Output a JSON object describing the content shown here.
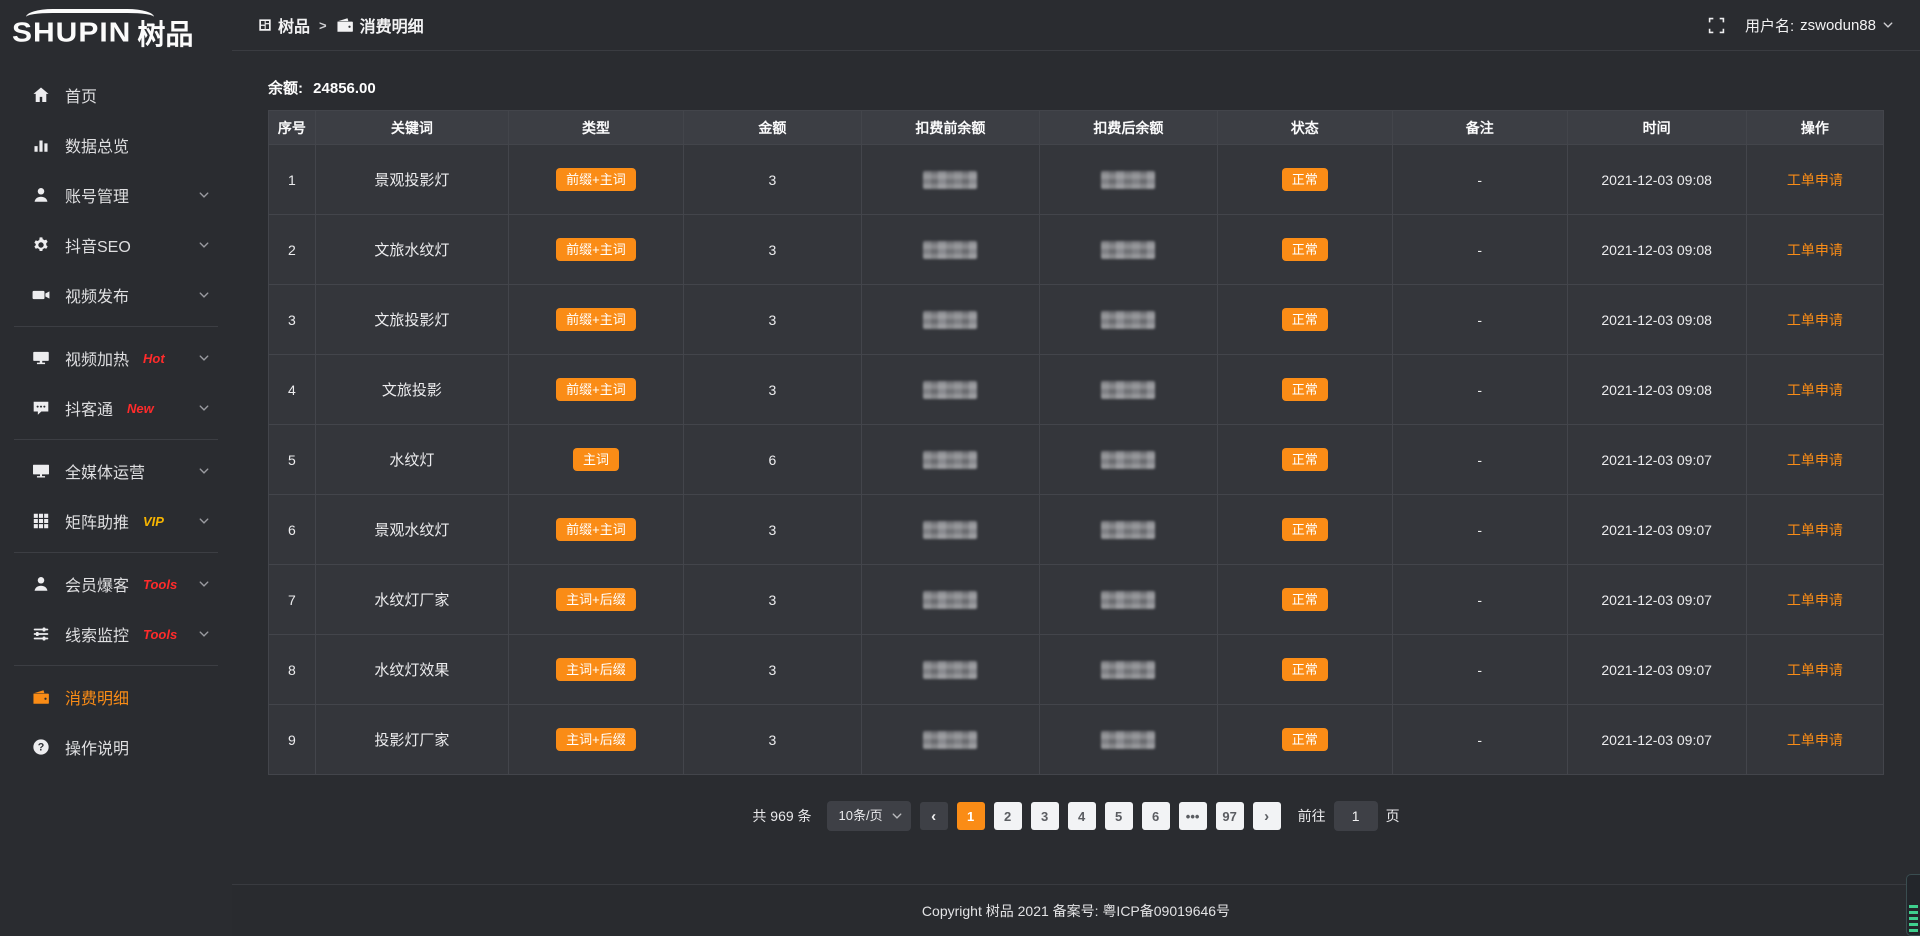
{
  "app": {
    "logo_en": "SHUPIN",
    "logo_cn": "树品"
  },
  "topbar": {
    "breadcrumb": [
      {
        "icon": "dashboard",
        "label": "树品"
      },
      {
        "icon": "wallet",
        "label": "消费明细"
      }
    ],
    "separator": ">",
    "username_label": "用户名:",
    "username": "zswodun88"
  },
  "sidebar": {
    "items": [
      {
        "label": "首页",
        "icon": "home"
      },
      {
        "label": "数据总览",
        "icon": "bar-chart"
      },
      {
        "label": "账号管理",
        "icon": "user",
        "chevron": true
      },
      {
        "label": "抖音SEO",
        "icon": "gear",
        "chevron": true
      },
      {
        "label": "视频发布",
        "icon": "video",
        "chevron": true
      },
      {
        "divider": true
      },
      {
        "label": "视频加热",
        "icon": "heat",
        "tag": "Hot",
        "tag_color": "#ff2b2b",
        "chevron": true
      },
      {
        "label": "抖客通",
        "icon": "chat",
        "tag": "New",
        "tag_color": "#ff2b2b",
        "chevron": true
      },
      {
        "divider": true
      },
      {
        "label": "全媒体运营",
        "icon": "monitor",
        "chevron": true
      },
      {
        "label": "矩阵助推",
        "icon": "grid",
        "tag": "VIP",
        "tag_color": "#f7b500",
        "chevron": true
      },
      {
        "divider": true
      },
      {
        "label": "会员爆客",
        "icon": "member",
        "tag": "Tools",
        "tag_color": "#ff2b2b",
        "chevron": true
      },
      {
        "label": "线索监控",
        "icon": "sliders",
        "tag": "Tools",
        "tag_color": "#ff2b2b",
        "chevron": true
      },
      {
        "divider": true
      },
      {
        "label": "消费明细",
        "icon": "wallet",
        "active": true
      },
      {
        "label": "操作说明",
        "icon": "question"
      }
    ]
  },
  "main": {
    "balance_label": "余额:",
    "balance_value": "24856.00",
    "table": {
      "headers": [
        "序号",
        "关键词",
        "类型",
        "金额",
        "扣费前余额",
        "扣费后余额",
        "状态",
        "备注",
        "时间",
        "操作"
      ],
      "rows": [
        {
          "no": "1",
          "keyword": "景观投影灯",
          "type": "前缀+主词",
          "amount": "3",
          "status": "正常",
          "note": "-",
          "time": "2021-12-03 09:08",
          "action": "工单申请"
        },
        {
          "no": "2",
          "keyword": "文旅水纹灯",
          "type": "前缀+主词",
          "amount": "3",
          "status": "正常",
          "note": "-",
          "time": "2021-12-03 09:08",
          "action": "工单申请"
        },
        {
          "no": "3",
          "keyword": "文旅投影灯",
          "type": "前缀+主词",
          "amount": "3",
          "status": "正常",
          "note": "-",
          "time": "2021-12-03 09:08",
          "action": "工单申请"
        },
        {
          "no": "4",
          "keyword": "文旅投影",
          "type": "前缀+主词",
          "amount": "3",
          "status": "正常",
          "note": "-",
          "time": "2021-12-03 09:08",
          "action": "工单申请"
        },
        {
          "no": "5",
          "keyword": "水纹灯",
          "type": "主词",
          "amount": "6",
          "status": "正常",
          "note": "-",
          "time": "2021-12-03 09:07",
          "action": "工单申请"
        },
        {
          "no": "6",
          "keyword": "景观水纹灯",
          "type": "前缀+主词",
          "amount": "3",
          "status": "正常",
          "note": "-",
          "time": "2021-12-03 09:07",
          "action": "工单申请"
        },
        {
          "no": "7",
          "keyword": "水纹灯厂家",
          "type": "主词+后缀",
          "amount": "3",
          "status": "正常",
          "note": "-",
          "time": "2021-12-03 09:07",
          "action": "工单申请"
        },
        {
          "no": "8",
          "keyword": "水纹灯效果",
          "type": "主词+后缀",
          "amount": "3",
          "status": "正常",
          "note": "-",
          "time": "2021-12-03 09:07",
          "action": "工单申请"
        },
        {
          "no": "9",
          "keyword": "投影灯厂家",
          "type": "主词+后缀",
          "amount": "3",
          "status": "正常",
          "note": "-",
          "time": "2021-12-03 09:07",
          "action": "工单申请"
        }
      ]
    },
    "pagination": {
      "total": "共 969 条",
      "page_size": "10条/页",
      "prev": "‹",
      "next": "›",
      "pages": [
        "1",
        "2",
        "3",
        "4",
        "5",
        "6",
        "•••",
        "97"
      ],
      "active_page": "1",
      "goto_label": "前往",
      "goto_value": "1",
      "goto_unit": "页"
    }
  },
  "footer": {
    "copyright": "Copyright 树品 2021 备案号: 粤ICP备09019646号"
  },
  "colors": {
    "accent": "#fa8c16",
    "tag_red": "#ff2b2b",
    "tag_vip": "#f7b500",
    "background": "#2a2c30"
  }
}
